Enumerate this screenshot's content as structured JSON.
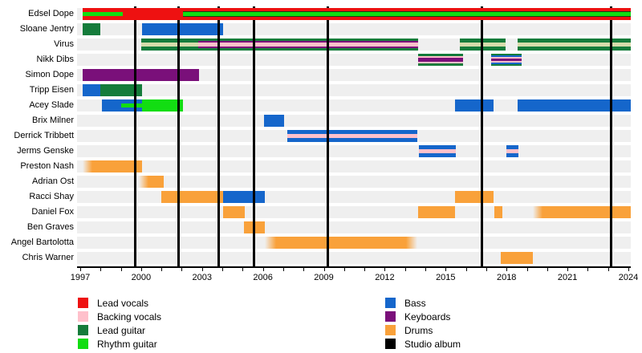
{
  "chart_data": {
    "type": "timeline",
    "description": "Band line-up timeline, roles of each member over time with studio album release markers",
    "x_axis": {
      "min": 1997,
      "max": 2024.3,
      "tick_labels": [
        1997,
        2000,
        2003,
        2006,
        2009,
        2012,
        2015,
        2018,
        2021,
        2024
      ],
      "minor_tick_every_years": 1
    },
    "roles": {
      "lead_vocals": "#ee1111",
      "backing_vocals": "#ffc0cb",
      "backing_vocals_pale": "#d6dcab",
      "lead_guitar": "#157c3b",
      "rhythm_guitar": "#12dd12",
      "bass": "#1566cb",
      "keyboards": "#7a107a",
      "drums": "#f9a13a",
      "studio_album": "#000000"
    },
    "album_years": [
      1999.7,
      2001.85,
      2003.8,
      2005.55,
      2009.2,
      2016.8,
      2023.15
    ],
    "members": [
      {
        "name": "Edsel Dope",
        "segments": [
          {
            "from": 1997.1,
            "to": 1999.1,
            "roles": [
              "lead_vocals",
              "rhythm_guitar"
            ],
            "front": true
          },
          {
            "from": 1999.1,
            "to": 2002.05,
            "roles": [
              "lead_vocals"
            ],
            "front": true
          },
          {
            "from": 2002.05,
            "to": 2024.1,
            "roles": [
              "lead_vocals",
              "rhythm_guitar"
            ],
            "front": true,
            "edge": true
          }
        ]
      },
      {
        "name": "Sloane Jentry",
        "segments": [
          {
            "from": 1997.1,
            "to": 1998.0,
            "roles": [
              "lead_guitar"
            ]
          },
          {
            "from": 2000.05,
            "to": 2004.05,
            "roles": [
              "bass"
            ]
          }
        ]
      },
      {
        "name": "Virus",
        "segments": [
          {
            "from": 2000.0,
            "to": 2002.8,
            "roles": [
              "lead_guitar",
              "backing_vocals_pale"
            ]
          },
          {
            "from": 2002.8,
            "to": 2013.65,
            "roles": [
              "lead_guitar",
              "keyboards",
              "backing_vocals"
            ]
          },
          {
            "from": 2015.7,
            "to": 2017.95,
            "roles": [
              "lead_guitar",
              "backing_vocals_pale"
            ]
          },
          {
            "from": 2018.55,
            "to": 2024.1,
            "roles": [
              "lead_guitar",
              "backing_vocals_pale"
            ]
          }
        ]
      },
      {
        "name": "Nikk Dibs",
        "segments": [
          {
            "from": 2013.65,
            "to": 2015.85,
            "roles": [
              "lead_guitar",
              "backing_vocals",
              "keyboards"
            ]
          },
          {
            "from": 2017.25,
            "to": 2018.75,
            "roles": [
              "lead_guitar",
              "bass",
              "backing_vocals",
              "keyboards"
            ]
          }
        ]
      },
      {
        "name": "Simon Dope",
        "segments": [
          {
            "from": 1997.1,
            "to": 2002.85,
            "roles": [
              "keyboards"
            ]
          }
        ]
      },
      {
        "name": "Tripp Eisen",
        "segments": [
          {
            "from": 1997.1,
            "to": 1998.0,
            "roles": [
              "bass"
            ]
          },
          {
            "from": 1998.0,
            "to": 2000.05,
            "roles": [
              "lead_guitar"
            ]
          }
        ]
      },
      {
        "name": "Acey Slade",
        "segments": [
          {
            "from": 1998.05,
            "to": 1999.0,
            "roles": [
              "bass"
            ]
          },
          {
            "from": 1999.0,
            "to": 2000.05,
            "roles": [
              "bass",
              "rhythm_guitar"
            ]
          },
          {
            "from": 2000.05,
            "to": 2002.05,
            "roles": [
              "rhythm_guitar"
            ]
          },
          {
            "from": 2015.45,
            "to": 2017.35,
            "roles": [
              "bass"
            ]
          },
          {
            "from": 2018.55,
            "to": 2024.1,
            "roles": [
              "bass"
            ]
          }
        ]
      },
      {
        "name": "Brix Milner",
        "segments": [
          {
            "from": 2006.05,
            "to": 2007.05,
            "roles": [
              "bass"
            ]
          }
        ]
      },
      {
        "name": "Derrick Tribbett",
        "segments": [
          {
            "from": 2007.2,
            "to": 2013.6,
            "roles": [
              "bass",
              "backing_vocals"
            ]
          }
        ]
      },
      {
        "name": "Jerms Genske",
        "segments": [
          {
            "from": 2013.7,
            "to": 2015.5,
            "roles": [
              "bass",
              "backing_vocals"
            ]
          },
          {
            "from": 2018.0,
            "to": 2018.6,
            "roles": [
              "bass",
              "backing_vocals"
            ]
          }
        ]
      },
      {
        "name": "Preston Nash",
        "segments": [
          {
            "from": 1997.1,
            "to": 2000.05,
            "roles": [
              "drums"
            ],
            "fade": "left"
          }
        ]
      },
      {
        "name": "Adrian Ost",
        "segments": [
          {
            "from": 1999.9,
            "to": 2001.1,
            "roles": [
              "drums"
            ],
            "fade": "left"
          }
        ]
      },
      {
        "name": "Racci Shay",
        "segments": [
          {
            "from": 2001.0,
            "to": 2004.05,
            "roles": [
              "drums"
            ]
          },
          {
            "from": 2004.05,
            "to": 2006.1,
            "roles": [
              "bass"
            ]
          },
          {
            "from": 2015.45,
            "to": 2017.35,
            "roles": [
              "drums"
            ]
          }
        ]
      },
      {
        "name": "Daniel Fox",
        "segments": [
          {
            "from": 2004.05,
            "to": 2005.1,
            "roles": [
              "drums"
            ]
          },
          {
            "from": 2013.65,
            "to": 2015.45,
            "roles": [
              "drums"
            ]
          },
          {
            "from": 2017.4,
            "to": 2017.8,
            "roles": [
              "drums"
            ]
          },
          {
            "from": 2019.3,
            "to": 2024.1,
            "roles": [
              "drums"
            ],
            "fade": "left"
          }
        ]
      },
      {
        "name": "Ben Graves",
        "segments": [
          {
            "from": 2005.05,
            "to": 2006.1,
            "roles": [
              "drums"
            ]
          }
        ]
      },
      {
        "name": "Angel Bartolotta",
        "segments": [
          {
            "from": 2006.1,
            "to": 2013.6,
            "roles": [
              "drums"
            ],
            "fade": "both"
          }
        ]
      },
      {
        "name": "Chris Warner",
        "segments": [
          {
            "from": 2017.7,
            "to": 2019.3,
            "roles": [
              "drums"
            ]
          }
        ]
      }
    ],
    "legend": {
      "columns": [
        {
          "items": [
            {
              "label": "Lead vocals",
              "role": "lead_vocals"
            },
            {
              "label": "Backing vocals",
              "role": "backing_vocals"
            },
            {
              "label": "Lead guitar",
              "role": "lead_guitar"
            },
            {
              "label": "Rhythm guitar",
              "role": "rhythm_guitar"
            }
          ]
        },
        {
          "items": [
            {
              "label": "Bass",
              "role": "bass"
            },
            {
              "label": "Keyboards",
              "role": "keyboards"
            },
            {
              "label": "Drums",
              "role": "drums"
            },
            {
              "label": "Studio album",
              "role": "studio_album"
            }
          ]
        }
      ]
    }
  }
}
